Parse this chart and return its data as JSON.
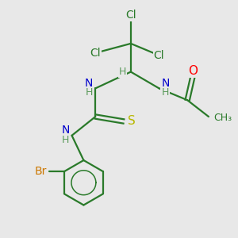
{
  "background_color": "#e8e8e8",
  "atom_colors": {
    "Cl": "#2a7a2a",
    "O": "#ff0000",
    "N": "#0000cc",
    "H": "#5a9a5a",
    "S": "#b8b800",
    "Br": "#cc7700",
    "C": "#2a7a2a",
    "bond": "#2a7a2a"
  },
  "figsize": [
    3.0,
    3.0
  ],
  "dpi": 100
}
